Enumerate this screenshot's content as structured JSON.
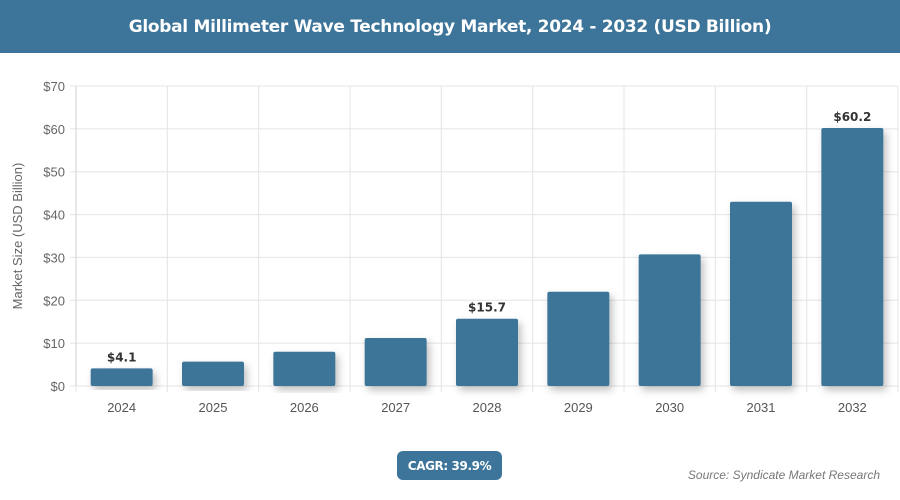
{
  "header": {
    "title": "Global Millimeter Wave Technology Market, 2024 - 2032 (USD Billion)"
  },
  "chart_data": {
    "type": "bar",
    "title": "Global Millimeter Wave Technology Market, 2024 - 2032 (USD Billion)",
    "xlabel": "",
    "ylabel": "Market Size (USD Billion)",
    "categories": [
      "2024",
      "2025",
      "2026",
      "2027",
      "2028",
      "2029",
      "2030",
      "2031",
      "2032"
    ],
    "values": [
      4.1,
      5.7,
      8.0,
      11.2,
      15.7,
      22.0,
      30.7,
      43.0,
      60.2
    ],
    "data_labels": [
      {
        "index": 0,
        "text": "$4.1"
      },
      {
        "index": 4,
        "text": "$15.7"
      },
      {
        "index": 8,
        "text": "$60.2"
      }
    ],
    "ylim": [
      0,
      70
    ],
    "yticks": [
      "$0",
      "$10",
      "$20",
      "$30",
      "$40",
      "$50",
      "$60",
      "$70"
    ],
    "grid": true,
    "bar_color": "#3d7499"
  },
  "footer": {
    "cagr": "CAGR: 39.9%",
    "source": "Source: Syndicate Market Research"
  }
}
